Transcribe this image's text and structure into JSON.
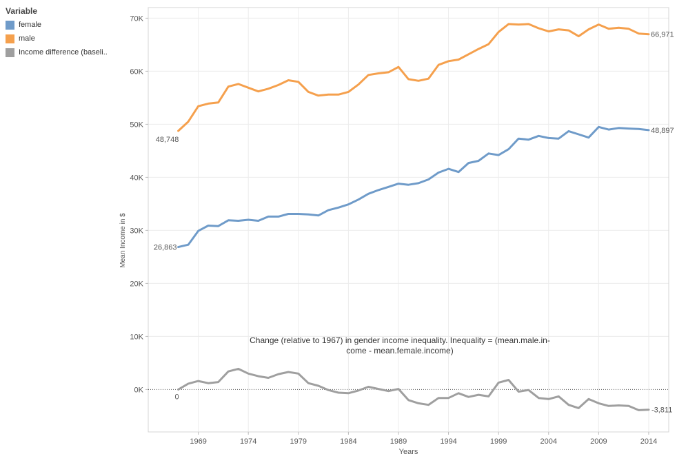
{
  "legend": {
    "title": "Variable",
    "items": [
      {
        "label": "female",
        "color": "#6f9bc9"
      },
      {
        "label": "male",
        "color": "#f5a04d"
      },
      {
        "label": "Income difference (baseli..",
        "color": "#9f9f9f"
      }
    ]
  },
  "chart_data": {
    "type": "line",
    "xlabel": "Years",
    "ylabel": "Mean Income in $",
    "xlim": [
      1964,
      2016
    ],
    "ylim": [
      -8000,
      72000
    ],
    "x_ticks": [
      1969,
      1974,
      1979,
      1984,
      1989,
      1994,
      1999,
      2004,
      2009,
      2014
    ],
    "y_ticks": [
      0,
      10000,
      20000,
      30000,
      40000,
      50000,
      60000,
      70000
    ],
    "y_tick_labels": [
      "0K",
      "10K",
      "20K",
      "30K",
      "40K",
      "50K",
      "60K",
      "70K"
    ],
    "grid": true,
    "annotation": "Change (relative to 1967) in gender income inequality. Inequality = (mean.male.in-\ncome - mean.female.income)",
    "x": [
      1967,
      1968,
      1969,
      1970,
      1971,
      1972,
      1973,
      1974,
      1975,
      1976,
      1977,
      1978,
      1979,
      1980,
      1981,
      1982,
      1983,
      1984,
      1985,
      1986,
      1987,
      1988,
      1989,
      1990,
      1991,
      1992,
      1993,
      1994,
      1995,
      1996,
      1997,
      1998,
      1999,
      2000,
      2001,
      2002,
      2003,
      2004,
      2005,
      2006,
      2007,
      2008,
      2009,
      2010,
      2011,
      2012,
      2013,
      2014
    ],
    "series": [
      {
        "name": "female",
        "color": "#6f9bc9",
        "start_label": "26,863",
        "end_label": "48,897",
        "values": [
          26863,
          27300,
          29900,
          30900,
          30800,
          31900,
          31800,
          32000,
          31800,
          32600,
          32600,
          33100,
          33100,
          33000,
          32800,
          33800,
          34300,
          34900,
          35800,
          36900,
          37600,
          38200,
          38800,
          38600,
          38900,
          39600,
          40900,
          41600,
          41000,
          42700,
          43100,
          44500,
          44200,
          45300,
          47300,
          47100,
          47800,
          47400,
          47300,
          48700,
          48100,
          47500,
          49500,
          49000,
          49300,
          49200,
          49100,
          48897
        ]
      },
      {
        "name": "male",
        "color": "#f5a04d",
        "start_label": "48,748",
        "end_label": "66,971",
        "values": [
          48748,
          50500,
          53400,
          53900,
          54100,
          57100,
          57600,
          56900,
          56200,
          56700,
          57400,
          58300,
          58000,
          56100,
          55400,
          55600,
          55600,
          56100,
          57500,
          59300,
          59600,
          59800,
          60800,
          58500,
          58200,
          58600,
          61200,
          61900,
          62200,
          63200,
          64200,
          65100,
          67400,
          68900,
          68800,
          68900,
          68100,
          67500,
          67900,
          67700,
          66600,
          67900,
          68800,
          68000,
          68200,
          68000,
          67100,
          66971
        ]
      },
      {
        "name": "Income difference (baseli..",
        "color": "#9f9f9f",
        "start_label": "0",
        "end_label": "-3,811",
        "values": [
          0,
          1100,
          1600,
          1200,
          1400,
          3400,
          3900,
          3000,
          2500,
          2200,
          2900,
          3300,
          3000,
          1200,
          700,
          -100,
          -600,
          -700,
          -200,
          500,
          100,
          -300,
          100,
          -2000,
          -2600,
          -2900,
          -1600,
          -1600,
          -700,
          -1400,
          -1000,
          -1300,
          1300,
          1800,
          -400,
          -100,
          -1600,
          -1800,
          -1300,
          -2900,
          -3500,
          -1800,
          -2600,
          -3100,
          -3000,
          -3100,
          -3900,
          -3811
        ]
      }
    ]
  }
}
